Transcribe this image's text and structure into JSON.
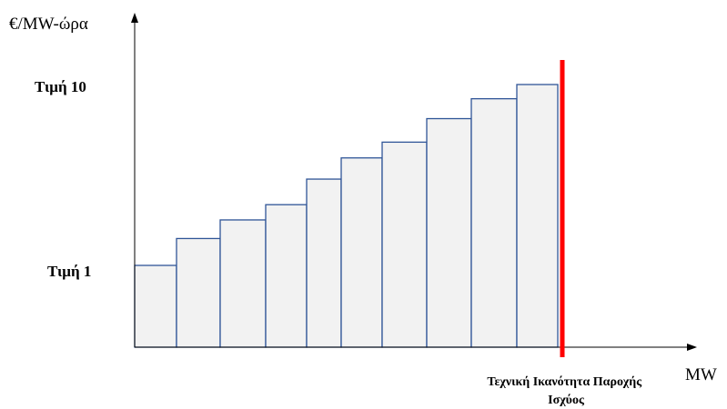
{
  "chart_data": {
    "type": "bar",
    "ylabel": "€/MW-ώρα",
    "xlabel": "MW",
    "ytick_labels": [
      {
        "text": "Τιμή 1",
        "value": 1
      },
      {
        "text": "Τιμή 10",
        "value": 10
      }
    ],
    "steps": [
      {
        "value": 1
      },
      {
        "value": 2.04
      },
      {
        "value": 2.76
      },
      {
        "value": 3.35
      },
      {
        "value": 4.34
      },
      {
        "value": 5.16
      },
      {
        "value": 5.77
      },
      {
        "value": 6.68
      },
      {
        "value": 7.45
      },
      {
        "value": 8.0
      }
    ],
    "capacity_label": "Τεχνική Ικανότητα Παροχής Ισχύος",
    "colors": {
      "bar_fill": "#f2f2f2",
      "bar_stroke": "#2f5597",
      "capacity_line": "#ff0000",
      "axis": "#000000"
    }
  }
}
